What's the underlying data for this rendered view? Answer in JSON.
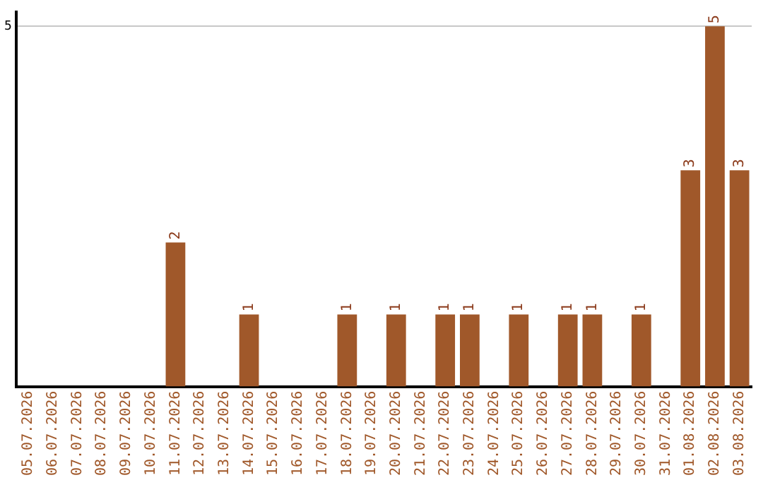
{
  "chart_data": {
    "type": "bar",
    "categories": [
      "05.07.2026",
      "06.07.2026",
      "07.07.2026",
      "08.07.2026",
      "09.07.2026",
      "10.07.2026",
      "11.07.2026",
      "12.07.2026",
      "13.07.2026",
      "14.07.2026",
      "15.07.2026",
      "16.07.2026",
      "17.07.2026",
      "18.07.2026",
      "19.07.2026",
      "20.07.2026",
      "21.07.2026",
      "22.07.2026",
      "23.07.2026",
      "24.07.2026",
      "25.07.2026",
      "26.07.2026",
      "27.07.2026",
      "28.07.2026",
      "29.07.2026",
      "30.07.2026",
      "31.07.2026",
      "01.08.2026",
      "02.08.2026",
      "03.08.2026"
    ],
    "values": [
      0,
      0,
      0,
      0,
      0,
      0,
      2,
      0,
      0,
      1,
      0,
      0,
      0,
      1,
      0,
      1,
      0,
      1,
      1,
      0,
      1,
      0,
      1,
      1,
      0,
      1,
      0,
      3,
      5,
      3
    ],
    "value_labels": [
      null,
      null,
      null,
      null,
      null,
      null,
      "2",
      null,
      null,
      "1",
      null,
      null,
      null,
      "1",
      null,
      "1",
      null,
      "1",
      "1",
      null,
      "1",
      null,
      "1",
      "1",
      null,
      "1",
      null,
      "3",
      "5",
      "3"
    ],
    "color": "#a0582a",
    "ylim": [
      0,
      5.2
    ],
    "yticks": [
      5
    ],
    "grid": "y",
    "legend": false
  }
}
